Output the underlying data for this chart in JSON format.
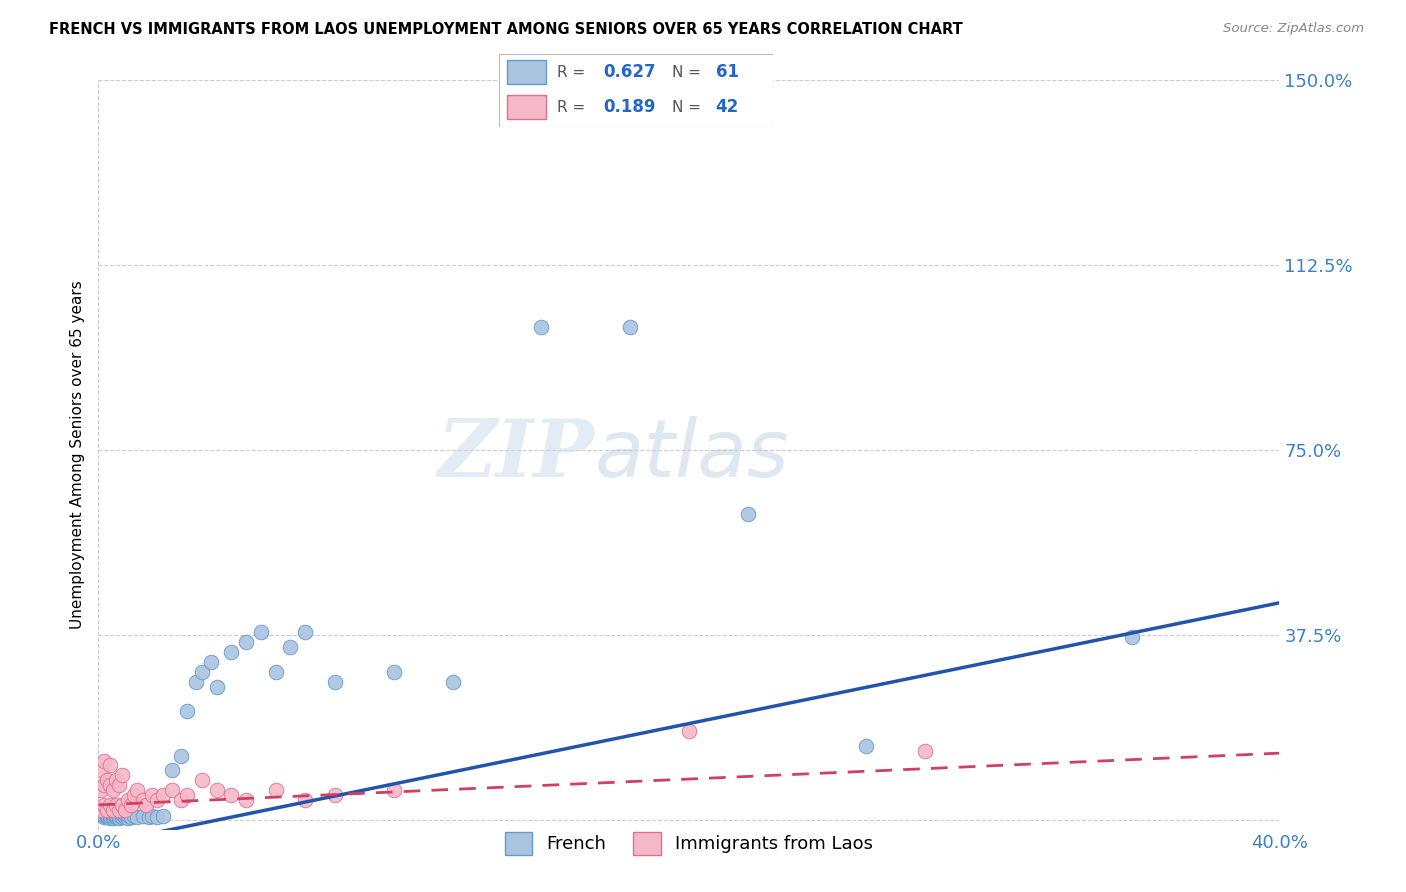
{
  "title": "FRENCH VS IMMIGRANTS FROM LAOS UNEMPLOYMENT AMONG SENIORS OVER 65 YEARS CORRELATION CHART",
  "source": "Source: ZipAtlas.com",
  "xlabel_french": "French",
  "xlabel_laos": "Immigrants from Laos",
  "ylabel": "Unemployment Among Seniors over 65 years",
  "R_french": 0.627,
  "N_french": 61,
  "R_laos": 0.189,
  "N_laos": 42,
  "color_french": "#aac4e0",
  "color_french_edge": "#6699cc",
  "color_french_line": "#2255aa",
  "color_laos": "#f5b8c8",
  "color_laos_edge": "#e07090",
  "color_laos_line": "#d04060",
  "xlim": [
    0.0,
    0.4
  ],
  "ylim": [
    -0.02,
    1.5
  ],
  "xticks": [
    0.0,
    0.4
  ],
  "xticklabels": [
    "0.0%",
    "40.0%"
  ],
  "yticks": [
    0.0,
    0.375,
    0.75,
    1.125,
    1.5
  ],
  "yticklabels": [
    "",
    "37.5%",
    "75.0%",
    "112.5%",
    "150.0%"
  ],
  "watermark_zip": "ZIP",
  "watermark_atlas": "atlas",
  "french_line_x0": 0.0,
  "french_line_y0": -0.05,
  "french_line_x1": 0.4,
  "french_line_y1": 0.44,
  "laos_line_x0": 0.0,
  "laos_line_y0": 0.03,
  "laos_line_x1": 0.4,
  "laos_line_y1": 0.135,
  "french_x": [
    0.001,
    0.001,
    0.001,
    0.002,
    0.002,
    0.002,
    0.002,
    0.003,
    0.003,
    0.003,
    0.003,
    0.003,
    0.004,
    0.004,
    0.004,
    0.004,
    0.005,
    0.005,
    0.005,
    0.005,
    0.006,
    0.006,
    0.006,
    0.007,
    0.007,
    0.007,
    0.008,
    0.008,
    0.009,
    0.009,
    0.01,
    0.01,
    0.011,
    0.012,
    0.013,
    0.015,
    0.017,
    0.018,
    0.02,
    0.022,
    0.025,
    0.028,
    0.03,
    0.033,
    0.035,
    0.038,
    0.04,
    0.045,
    0.05,
    0.055,
    0.06,
    0.065,
    0.07,
    0.08,
    0.1,
    0.12,
    0.15,
    0.18,
    0.22,
    0.26,
    0.35
  ],
  "french_y": [
    0.01,
    0.015,
    0.02,
    0.005,
    0.01,
    0.015,
    0.02,
    0.005,
    0.008,
    0.012,
    0.018,
    0.025,
    0.004,
    0.008,
    0.013,
    0.02,
    0.003,
    0.007,
    0.012,
    0.018,
    0.005,
    0.009,
    0.015,
    0.004,
    0.01,
    0.016,
    0.006,
    0.012,
    0.005,
    0.011,
    0.003,
    0.009,
    0.006,
    0.008,
    0.005,
    0.007,
    0.006,
    0.008,
    0.005,
    0.007,
    0.1,
    0.13,
    0.22,
    0.28,
    0.3,
    0.32,
    0.27,
    0.34,
    0.36,
    0.38,
    0.3,
    0.35,
    0.38,
    0.28,
    0.3,
    0.28,
    1.0,
    1.0,
    0.62,
    0.15,
    0.37
  ],
  "laos_x": [
    0.001,
    0.001,
    0.001,
    0.002,
    0.002,
    0.002,
    0.003,
    0.003,
    0.004,
    0.004,
    0.004,
    0.005,
    0.005,
    0.006,
    0.006,
    0.007,
    0.007,
    0.008,
    0.008,
    0.009,
    0.01,
    0.011,
    0.012,
    0.013,
    0.015,
    0.016,
    0.018,
    0.02,
    0.022,
    0.025,
    0.028,
    0.03,
    0.035,
    0.04,
    0.045,
    0.05,
    0.06,
    0.07,
    0.08,
    0.1,
    0.2,
    0.28
  ],
  "laos_y": [
    0.02,
    0.06,
    0.1,
    0.03,
    0.07,
    0.12,
    0.02,
    0.08,
    0.03,
    0.07,
    0.11,
    0.02,
    0.06,
    0.03,
    0.08,
    0.02,
    0.07,
    0.03,
    0.09,
    0.02,
    0.04,
    0.03,
    0.05,
    0.06,
    0.04,
    0.03,
    0.05,
    0.04,
    0.05,
    0.06,
    0.04,
    0.05,
    0.08,
    0.06,
    0.05,
    0.04,
    0.06,
    0.04,
    0.05,
    0.06,
    0.18,
    0.14
  ]
}
